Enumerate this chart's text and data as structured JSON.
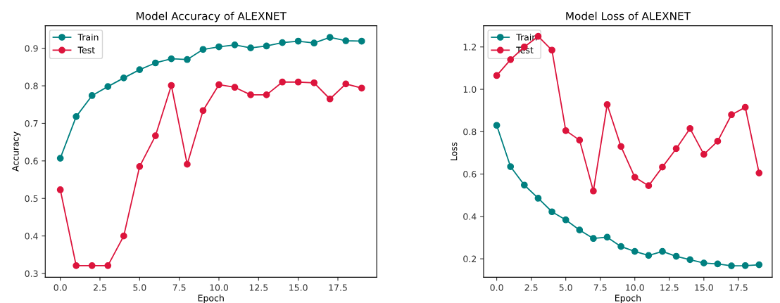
{
  "chart_data": [
    {
      "type": "line",
      "title": "Model Accuracy of ALEXNET",
      "xlabel": "Epoch",
      "ylabel": "Accuracy",
      "x": [
        0,
        1,
        2,
        3,
        4,
        5,
        6,
        7,
        8,
        9,
        10,
        11,
        12,
        13,
        14,
        15,
        16,
        17,
        18,
        19
      ],
      "series": [
        {
          "name": "Train",
          "color": "#008080",
          "values": [
            0.607,
            0.718,
            0.774,
            0.798,
            0.821,
            0.843,
            0.861,
            0.872,
            0.87,
            0.897,
            0.904,
            0.909,
            0.901,
            0.906,
            0.915,
            0.919,
            0.914,
            0.929,
            0.92,
            0.919
          ]
        },
        {
          "name": "Test",
          "color": "#dc143c",
          "values": [
            0.523,
            0.321,
            0.321,
            0.321,
            0.4,
            0.585,
            0.667,
            0.801,
            0.591,
            0.734,
            0.803,
            0.796,
            0.776,
            0.776,
            0.81,
            0.81,
            0.808,
            0.765,
            0.805,
            0.794
          ]
        }
      ],
      "xlim": [
        -0.95,
        19.95
      ],
      "ylim": [
        0.29,
        0.96
      ],
      "xticks": [
        {
          "value": 0,
          "label": "0.0"
        },
        {
          "value": 2.5,
          "label": "2.5"
        },
        {
          "value": 5,
          "label": "5.0"
        },
        {
          "value": 7.5,
          "label": "7.5"
        },
        {
          "value": 10,
          "label": "10.0"
        },
        {
          "value": 12.5,
          "label": "12.5"
        },
        {
          "value": 15,
          "label": "15.0"
        },
        {
          "value": 17.5,
          "label": "17.5"
        }
      ],
      "yticks": [
        0.3,
        0.4,
        0.5,
        0.6,
        0.7,
        0.8,
        0.9
      ],
      "legend": "top left",
      "marker": "circle",
      "line_style": "solid",
      "grid": false
    },
    {
      "type": "line",
      "title": "Model Loss of ALEXNET",
      "xlabel": "Epoch",
      "ylabel": "Loss",
      "x": [
        0,
        1,
        2,
        3,
        4,
        5,
        6,
        7,
        8,
        9,
        10,
        11,
        12,
        13,
        14,
        15,
        16,
        17,
        18,
        19
      ],
      "series": [
        {
          "name": "Train",
          "color": "#008080",
          "values": [
            0.83,
            0.635,
            0.548,
            0.486,
            0.422,
            0.384,
            0.336,
            0.296,
            0.302,
            0.258,
            0.235,
            0.216,
            0.235,
            0.212,
            0.196,
            0.18,
            0.176,
            0.167,
            0.168,
            0.172
          ]
        },
        {
          "name": "Test",
          "color": "#dc143c",
          "values": [
            1.065,
            1.14,
            1.2,
            1.25,
            1.185,
            0.805,
            0.76,
            0.52,
            0.928,
            0.73,
            0.585,
            0.545,
            0.633,
            0.72,
            0.815,
            0.693,
            0.755,
            0.88,
            0.915,
            0.605
          ]
        }
      ],
      "xlim": [
        -0.95,
        19.95
      ],
      "ylim": [
        0.113,
        1.3
      ],
      "xticks": [
        {
          "value": 0,
          "label": "0.0"
        },
        {
          "value": 2.5,
          "label": "2.5"
        },
        {
          "value": 5,
          "label": "5.0"
        },
        {
          "value": 7.5,
          "label": "7.5"
        },
        {
          "value": 10,
          "label": "10.0"
        },
        {
          "value": 12.5,
          "label": "12.5"
        },
        {
          "value": 15,
          "label": "15.0"
        },
        {
          "value": 17.5,
          "label": "17.5"
        }
      ],
      "yticks": [
        0.2,
        0.4,
        0.6,
        0.8,
        {
          "value": 1.0,
          "label": "1.0"
        },
        1.2
      ],
      "legend": "top left",
      "marker": "circle",
      "line_style": "solid",
      "grid": false
    }
  ]
}
